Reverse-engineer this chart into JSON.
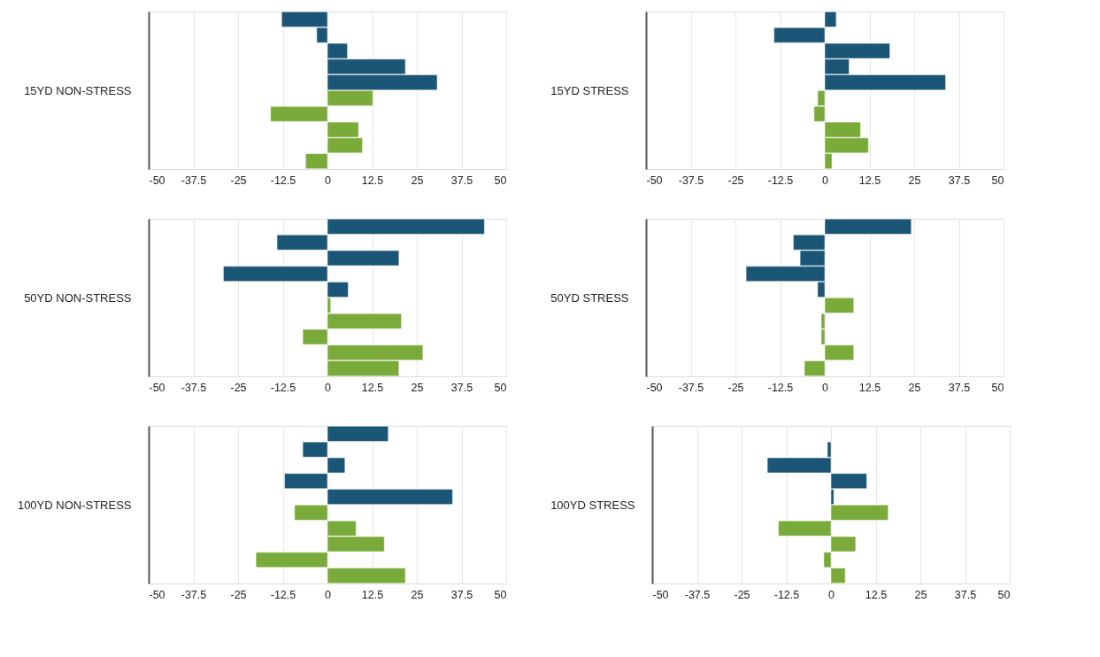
{
  "chart_data": [
    {
      "type": "bar",
      "orientation": "horizontal",
      "ylabel": "15YD NON-STRESS",
      "categories": [
        null,
        null,
        null,
        null,
        null,
        null,
        null,
        null,
        null,
        null
      ],
      "values": [
        -12.8,
        -3,
        5.6,
        21.8,
        30.7,
        12.7,
        -15.9,
        8.7,
        9.8,
        -6.1
      ],
      "colors": [
        "#1b5676",
        "#1b5676",
        "#1b5676",
        "#1b5676",
        "#1b5676",
        "#7aab3a",
        "#7aab3a",
        "#7aab3a",
        "#7aab3a",
        "#7aab3a"
      ],
      "xlim": [
        -50,
        50
      ],
      "xticks": [
        -50,
        -37.5,
        -25,
        -12.5,
        0,
        12.5,
        25,
        37.5,
        50
      ],
      "grid": "x"
    },
    {
      "type": "bar",
      "orientation": "horizontal",
      "ylabel": "15YD STRESS",
      "categories": [
        null,
        null,
        null,
        null,
        null,
        null,
        null,
        null,
        null,
        null
      ],
      "values": [
        3.2,
        -14.2,
        18.2,
        6.8,
        33.8,
        -2,
        -3,
        10,
        12.2,
        2
      ],
      "colors": [
        "#1b5676",
        "#1b5676",
        "#1b5676",
        "#1b5676",
        "#1b5676",
        "#7aab3a",
        "#7aab3a",
        "#7aab3a",
        "#7aab3a",
        "#7aab3a"
      ],
      "xlim": [
        -50,
        50
      ],
      "xticks": [
        -50,
        -37.5,
        -25,
        -12.5,
        0,
        12.5,
        25,
        37.5,
        50
      ],
      "grid": "x"
    },
    {
      "type": "bar",
      "orientation": "horizontal",
      "ylabel": "50YD NON-STRESS",
      "categories": [
        null,
        null,
        null,
        null,
        null,
        null,
        null,
        null,
        null,
        null
      ],
      "values": [
        43.9,
        -14.1,
        20,
        -29.1,
        5.8,
        0.9,
        20.7,
        -6.9,
        26.7,
        20
      ],
      "colors": [
        "#1b5676",
        "#1b5676",
        "#1b5676",
        "#1b5676",
        "#1b5676",
        "#7aab3a",
        "#7aab3a",
        "#7aab3a",
        "#7aab3a",
        "#7aab3a"
      ],
      "xlim": [
        -50,
        50
      ],
      "xticks": [
        -50,
        -37.5,
        -25,
        -12.5,
        0,
        12.5,
        25,
        37.5,
        50
      ],
      "grid": "x"
    },
    {
      "type": "bar",
      "orientation": "horizontal",
      "ylabel": "50YD STRESS",
      "categories": [
        null,
        null,
        null,
        null,
        null,
        null,
        null,
        null,
        null,
        null
      ],
      "values": [
        24.2,
        -8.8,
        -6.9,
        -22,
        -2,
        8.1,
        -1,
        -1,
        8.1,
        -5.7
      ],
      "colors": [
        "#1b5676",
        "#1b5676",
        "#1b5676",
        "#1b5676",
        "#1b5676",
        "#7aab3a",
        "#7aab3a",
        "#7aab3a",
        "#7aab3a",
        "#7aab3a"
      ],
      "xlim": [
        -50,
        50
      ],
      "xticks": [
        -50,
        -37.5,
        -25,
        -12.5,
        0,
        12.5,
        25,
        37.5,
        50
      ],
      "grid": "x"
    },
    {
      "type": "bar",
      "orientation": "horizontal",
      "ylabel": "100YD NON-STRESS",
      "categories": [
        null,
        null,
        null,
        null,
        null,
        null,
        null,
        null,
        null,
        null
      ],
      "values": [
        17,
        -6.9,
        4.9,
        -12,
        35,
        -9.2,
        8,
        15.9,
        -20,
        21.8
      ],
      "colors": [
        "#1b5676",
        "#1b5676",
        "#1b5676",
        "#1b5676",
        "#1b5676",
        "#7aab3a",
        "#7aab3a",
        "#7aab3a",
        "#7aab3a",
        "#7aab3a"
      ],
      "xlim": [
        -50,
        50
      ],
      "xticks": [
        -50,
        -37.5,
        -25,
        -12.5,
        0,
        12.5,
        25,
        37.5,
        50
      ],
      "grid": "x"
    },
    {
      "type": "bar",
      "orientation": "horizontal",
      "ylabel": "100YD STRESS",
      "categories": [
        null,
        null,
        null,
        null,
        null,
        null,
        null,
        null,
        null,
        null
      ],
      "values": [
        null,
        -1,
        -17.8,
        10,
        0.8,
        16,
        -14.7,
        6.9,
        -2,
        4
      ],
      "colors": [
        "#1b5676",
        "#1b5676",
        "#1b5676",
        "#1b5676",
        "#1b5676",
        "#7aab3a",
        "#7aab3a",
        "#7aab3a",
        "#7aab3a",
        "#7aab3a"
      ],
      "xlim": [
        -50,
        50
      ],
      "xticks": [
        -50,
        -37.5,
        -25,
        -12.5,
        0,
        12.5,
        25,
        37.5,
        50
      ],
      "grid": "x"
    }
  ]
}
